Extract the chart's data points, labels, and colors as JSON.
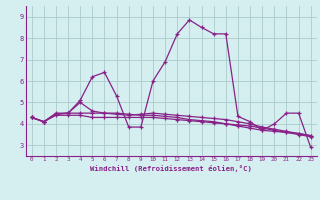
{
  "xlabel": "Windchill (Refroidissement éolien,°C)",
  "bg_color": "#d5eef0",
  "grid_color": "#aacccc",
  "line_color": "#882288",
  "xlim": [
    -0.5,
    23.5
  ],
  "ylim": [
    2.5,
    9.5
  ],
  "yticks": [
    3,
    4,
    5,
    6,
    7,
    8,
    9
  ],
  "xticks": [
    0,
    1,
    2,
    3,
    4,
    5,
    6,
    7,
    8,
    9,
    10,
    11,
    12,
    13,
    14,
    15,
    16,
    17,
    18,
    19,
    20,
    21,
    22,
    23
  ],
  "line1": [
    4.3,
    4.1,
    4.5,
    4.5,
    5.1,
    6.2,
    6.4,
    5.3,
    3.85,
    3.85,
    6.0,
    6.9,
    8.2,
    8.85,
    8.5,
    8.2,
    8.2,
    4.35,
    4.1,
    3.7,
    4.0,
    4.5,
    4.5,
    2.9
  ],
  "line2": [
    4.3,
    4.1,
    4.45,
    4.5,
    4.5,
    4.5,
    4.5,
    4.45,
    4.4,
    4.45,
    4.5,
    4.45,
    4.4,
    4.35,
    4.3,
    4.25,
    4.2,
    4.1,
    4.0,
    3.85,
    3.75,
    3.65,
    3.55,
    3.45
  ],
  "line3": [
    4.3,
    4.1,
    4.45,
    4.5,
    5.0,
    4.6,
    4.5,
    4.5,
    4.45,
    4.4,
    4.4,
    4.35,
    4.3,
    4.2,
    4.15,
    4.1,
    4.0,
    3.9,
    3.8,
    3.7,
    3.65,
    3.6,
    3.55,
    3.45
  ],
  "line4": [
    4.3,
    4.1,
    4.4,
    4.4,
    4.4,
    4.3,
    4.3,
    4.3,
    4.3,
    4.3,
    4.3,
    4.25,
    4.2,
    4.15,
    4.1,
    4.05,
    4.0,
    3.95,
    3.9,
    3.8,
    3.7,
    3.6,
    3.5,
    3.4
  ]
}
